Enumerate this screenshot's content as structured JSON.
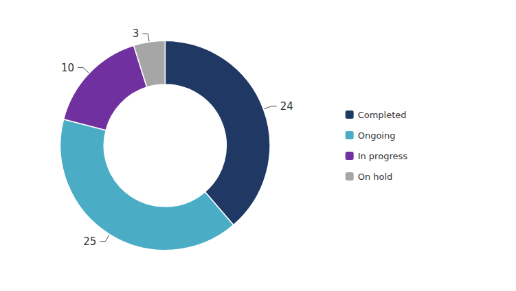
{
  "chart_data": {
    "type": "donut",
    "categories": [
      "Completed",
      "Ongoing",
      "In progress",
      "On hold"
    ],
    "values": [
      24,
      25,
      10,
      3
    ],
    "colors": [
      "#1f3864",
      "#4bacc6",
      "#7030a0",
      "#a6a6a6"
    ],
    "data_labels": true,
    "legend": "right"
  }
}
